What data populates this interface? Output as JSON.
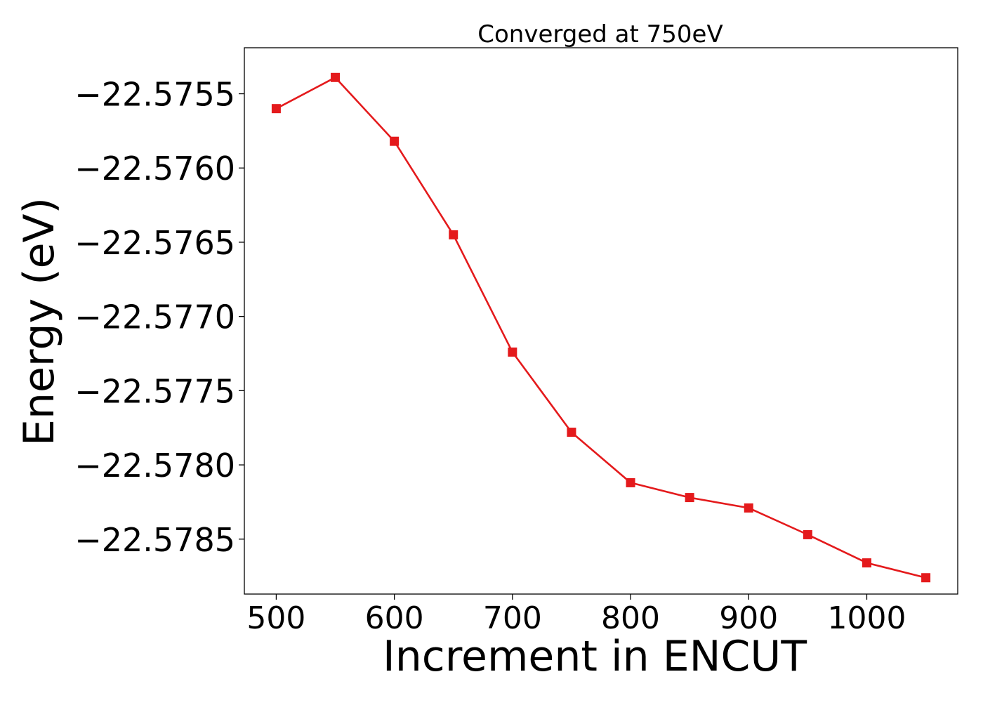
{
  "chart_data": {
    "type": "line",
    "title": "Converged at 750eV",
    "xlabel": "Increment in ENCUT",
    "ylabel": "Energy (eV)",
    "xlim": [
      473,
      1077
    ],
    "ylim": [
      -22.57887,
      -22.57519
    ],
    "x_ticks": [
      500,
      600,
      700,
      800,
      900,
      1000
    ],
    "x_tick_labels": [
      "500",
      "600",
      "700",
      "800",
      "900",
      "1000"
    ],
    "y_ticks": [
      -22.5755,
      -22.576,
      -22.5765,
      -22.577,
      -22.5775,
      -22.578,
      -22.5785
    ],
    "y_tick_labels": [
      "−22.5755",
      "−22.5760",
      "−22.5765",
      "−22.5770",
      "−22.5775",
      "−22.5780",
      "−22.5785"
    ],
    "grid": false,
    "legend": "none",
    "series": [
      {
        "color": "#e41a1c",
        "marker": "square",
        "x": [
          500,
          550,
          600,
          650,
          700,
          750,
          800,
          850,
          900,
          950,
          1000,
          1050
        ],
        "y": [
          -22.5756,
          -22.57539,
          -22.57582,
          -22.57645,
          -22.57724,
          -22.57778,
          -22.57812,
          -22.57822,
          -22.57829,
          -22.57847,
          -22.57866,
          -22.57876
        ]
      }
    ]
  }
}
